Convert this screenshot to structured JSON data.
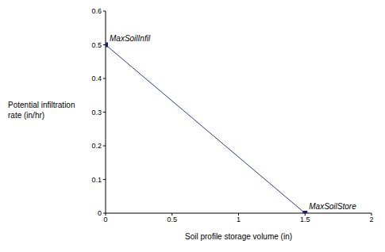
{
  "chart_data": {
    "type": "line",
    "x_label": "Soil profile storage volume (in)",
    "y_label": "Potential infiltration rate (in/hr)",
    "x": [
      0,
      1.5
    ],
    "values": [
      0.5,
      0
    ],
    "annotations": [
      "MaxSoilInfil",
      "MaxSoilStore"
    ],
    "color": "#2b3a8c",
    "marker": "square",
    "xlim": [
      0,
      2
    ],
    "xticks": [
      0,
      0.5,
      1,
      1.5,
      2
    ],
    "ylim": [
      0,
      0.6
    ],
    "yticks": [
      0,
      0.1,
      0.2,
      0.3,
      0.4,
      0.5,
      0.6
    ],
    "grid": false
  }
}
